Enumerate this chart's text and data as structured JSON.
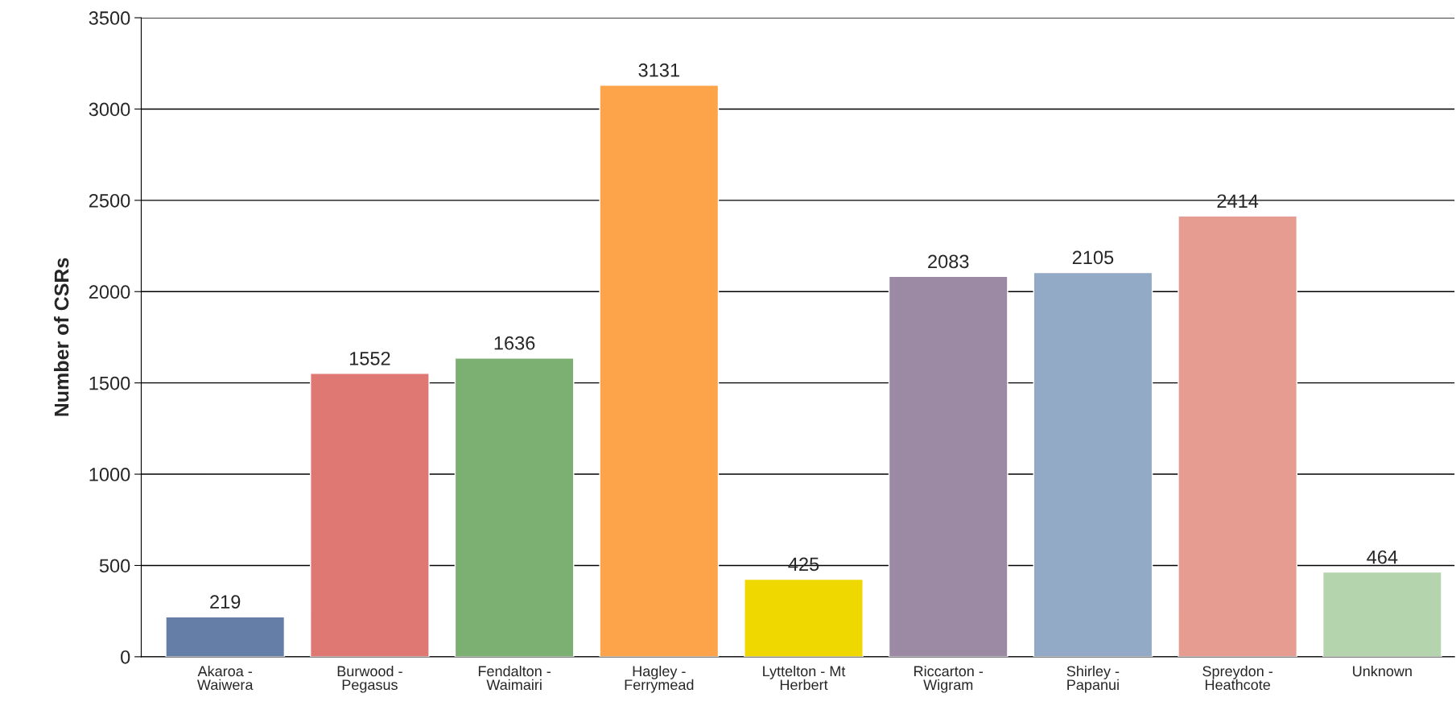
{
  "chart_data": {
    "type": "bar",
    "ylabel": "Number of CSRs",
    "categories": [
      "Akaroa -\nWaiwera",
      "Burwood -\nPegasus",
      "Fendalton -\nWaimairi",
      "Hagley -\nFerrymead",
      "Lyttelton - Mt\nHerbert",
      "Riccarton -\nWigram",
      "Shirley -\nPapanui",
      "Spreydon -\nHeathcote",
      "Unknown"
    ],
    "values": [
      219,
      1552,
      1636,
      3131,
      425,
      2083,
      2105,
      2414,
      464
    ],
    "colors": [
      "#647ea8",
      "#df7872",
      "#7caf72",
      "#fda44a",
      "#eed800",
      "#9c8aa5",
      "#93aac7",
      "#e79c92",
      "#b4d4ad"
    ],
    "ylim": [
      0,
      3500
    ],
    "yticks": [
      0,
      500,
      1000,
      1500,
      2000,
      2500,
      3000,
      3500
    ],
    "grid": "y",
    "data_labels": true
  }
}
